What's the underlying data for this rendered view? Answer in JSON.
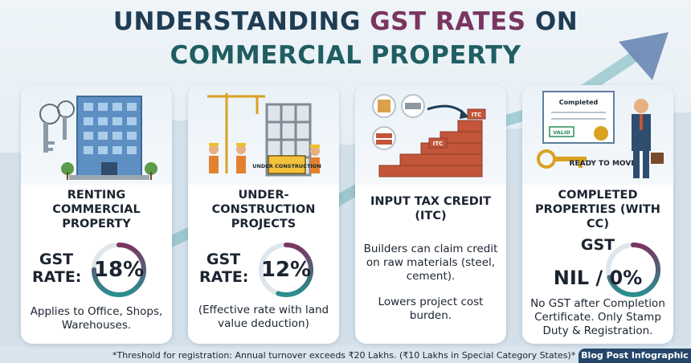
{
  "title": {
    "part1": "UNDERSTANDING ",
    "accent": "GST RATES",
    "part2": " ON",
    "line2": "COMMERCIAL PROPERTY"
  },
  "cards": [
    {
      "heading": "RENTING COMMERCIAL PROPERTY",
      "rate_label": "GST RATE:",
      "rate_value": "18%",
      "ring_fill": 0.75,
      "description": "Applies to Office, Shops, Warehouses."
    },
    {
      "heading": "UNDER-CONSTRUCTION PROJECTS",
      "rate_label": "GST RATE:",
      "rate_value": "12%",
      "ring_fill": 0.55,
      "sign_text": "UNDER CONSTRUCTION",
      "description": "(Effective rate with land value deduction)"
    },
    {
      "heading": "INPUT TAX CREDIT (ITC)",
      "tag1": "ITC",
      "tag2": "ITC",
      "description1": "Builders can claim credit on raw materials (steel, cement).",
      "description2": "Lowers project cost burden."
    },
    {
      "heading": "COMPLETED PROPERTIES (WITH CC)",
      "rate_label": "GST",
      "rate_value": "NIL / 0%",
      "ring_fill": 0.7,
      "certificate_text": "Completed",
      "valid_text": "VALID",
      "ready_text": "READY TO MOVE",
      "description": "No GST after Completion Certificate. Only Stamp Duty & Registration."
    }
  ],
  "footer": "*Threshold for registration: Annual turnover exceeds ₹20 Lakhs. (₹10 Lakhs in Special Category States)*",
  "badge": "Blog Post Infographic",
  "colors": {
    "ring_teal": "#2a8f8f",
    "ring_purple": "#7a3560",
    "brick": "#c2553a",
    "navy": "#1f3d54"
  }
}
